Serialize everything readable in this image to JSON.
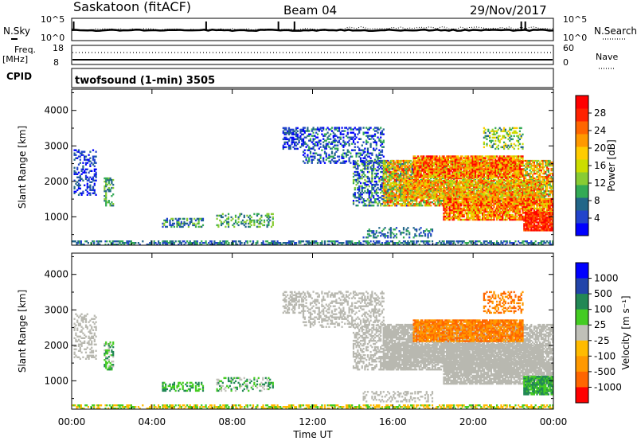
{
  "header": {
    "station": "Saskatoon (fitACF)",
    "beam": "Beam 04",
    "date": "29/Nov/2017"
  },
  "status_panels": {
    "nsky_label": "N.Sky",
    "nsky_top_tick": "10^5",
    "nsky_bottom_tick": "10^0",
    "nsearch_label": "N.Search",
    "nsearch_top_tick": "10^5",
    "nsearch_bottom_tick": "10^0",
    "freq_label_1": "Freq.",
    "freq_label_2": "[MHz]",
    "freq_top_tick": "18",
    "freq_bottom_tick": "8",
    "nave_label": "Nave",
    "nave_top_tick": "60",
    "nave_bottom_tick": "0",
    "cpid_label": "CPID",
    "cpid_text": "twofsound (1-min) 3505"
  },
  "colors": {
    "power": [
      "#0000ff",
      "#2244cc",
      "#226688",
      "#33aa55",
      "#88cc33",
      "#ccdd00",
      "#ffcc00",
      "#ff9900",
      "#ff6600",
      "#ff2200",
      "#ff0000"
    ],
    "velocity": [
      "#ff0000",
      "#ff3300",
      "#ff6600",
      "#ff9900",
      "#ffbb00",
      "#c0c0b8",
      "#c0c0b8",
      "#44cc22",
      "#228855",
      "#2244aa",
      "#0000ff"
    ],
    "ground": "#b8b8b0"
  },
  "chart_data": [
    {
      "type": "heatmap",
      "name": "power-panel",
      "ylabel": "Slant Range [km]",
      "xlabel": "Time UT",
      "x_ticks": [
        "00:00",
        "04:00",
        "08:00",
        "12:00",
        "16:00",
        "20:00",
        "00:00"
      ],
      "y_ticks": [
        1000,
        2000,
        3000,
        4000
      ],
      "ylim": [
        200,
        4600
      ],
      "xlim_hours": [
        0,
        24
      ],
      "colorbar": {
        "label": "Power [dB]",
        "ticks": [
          4,
          8,
          12,
          16,
          20,
          24,
          28
        ],
        "range": [
          0,
          32
        ]
      }
    },
    {
      "type": "heatmap",
      "name": "velocity-panel",
      "ylabel": "Slant Range [km]",
      "xlabel": "Time UT",
      "x_ticks": [
        "00:00",
        "04:00",
        "08:00",
        "12:00",
        "16:00",
        "20:00",
        "00:00"
      ],
      "y_ticks": [
        1000,
        2000,
        3000,
        4000
      ],
      "ylim": [
        200,
        4600
      ],
      "xlim_hours": [
        0,
        24
      ],
      "colorbar": {
        "label": "Velocity [m s⁻¹]",
        "ticks": [
          1000,
          500,
          100,
          25,
          -25,
          -100,
          -500,
          -1000
        ]
      }
    }
  ]
}
